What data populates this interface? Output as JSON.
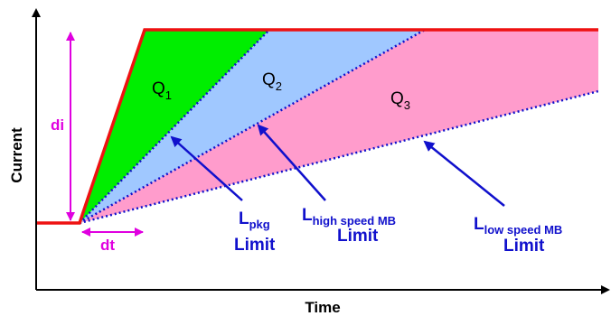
{
  "axes": {
    "x_label": "Time",
    "y_label": "Current"
  },
  "annotations": {
    "di": "di",
    "dt": "dt"
  },
  "regions": [
    {
      "letter": "Q",
      "sub": "1",
      "color": "#00ee00"
    },
    {
      "letter": "Q",
      "sub": "2",
      "color": "#a0c8ff"
    },
    {
      "letter": "Q",
      "sub": "3",
      "color": "#ff9ccc"
    }
  ],
  "limits": [
    {
      "base": "L",
      "sub": "pkg",
      "word": "Limit"
    },
    {
      "base": "L",
      "sub": "high speed MB",
      "word": "Limit"
    },
    {
      "base": "L",
      "sub": "low speed MB",
      "word": "Limit"
    }
  ],
  "colors": {
    "current_line": "#ee1111",
    "dotted_lines": "#1010cc",
    "arrows": "#1010cc",
    "magnitude": "#e000e0",
    "axis": "#000000"
  }
}
